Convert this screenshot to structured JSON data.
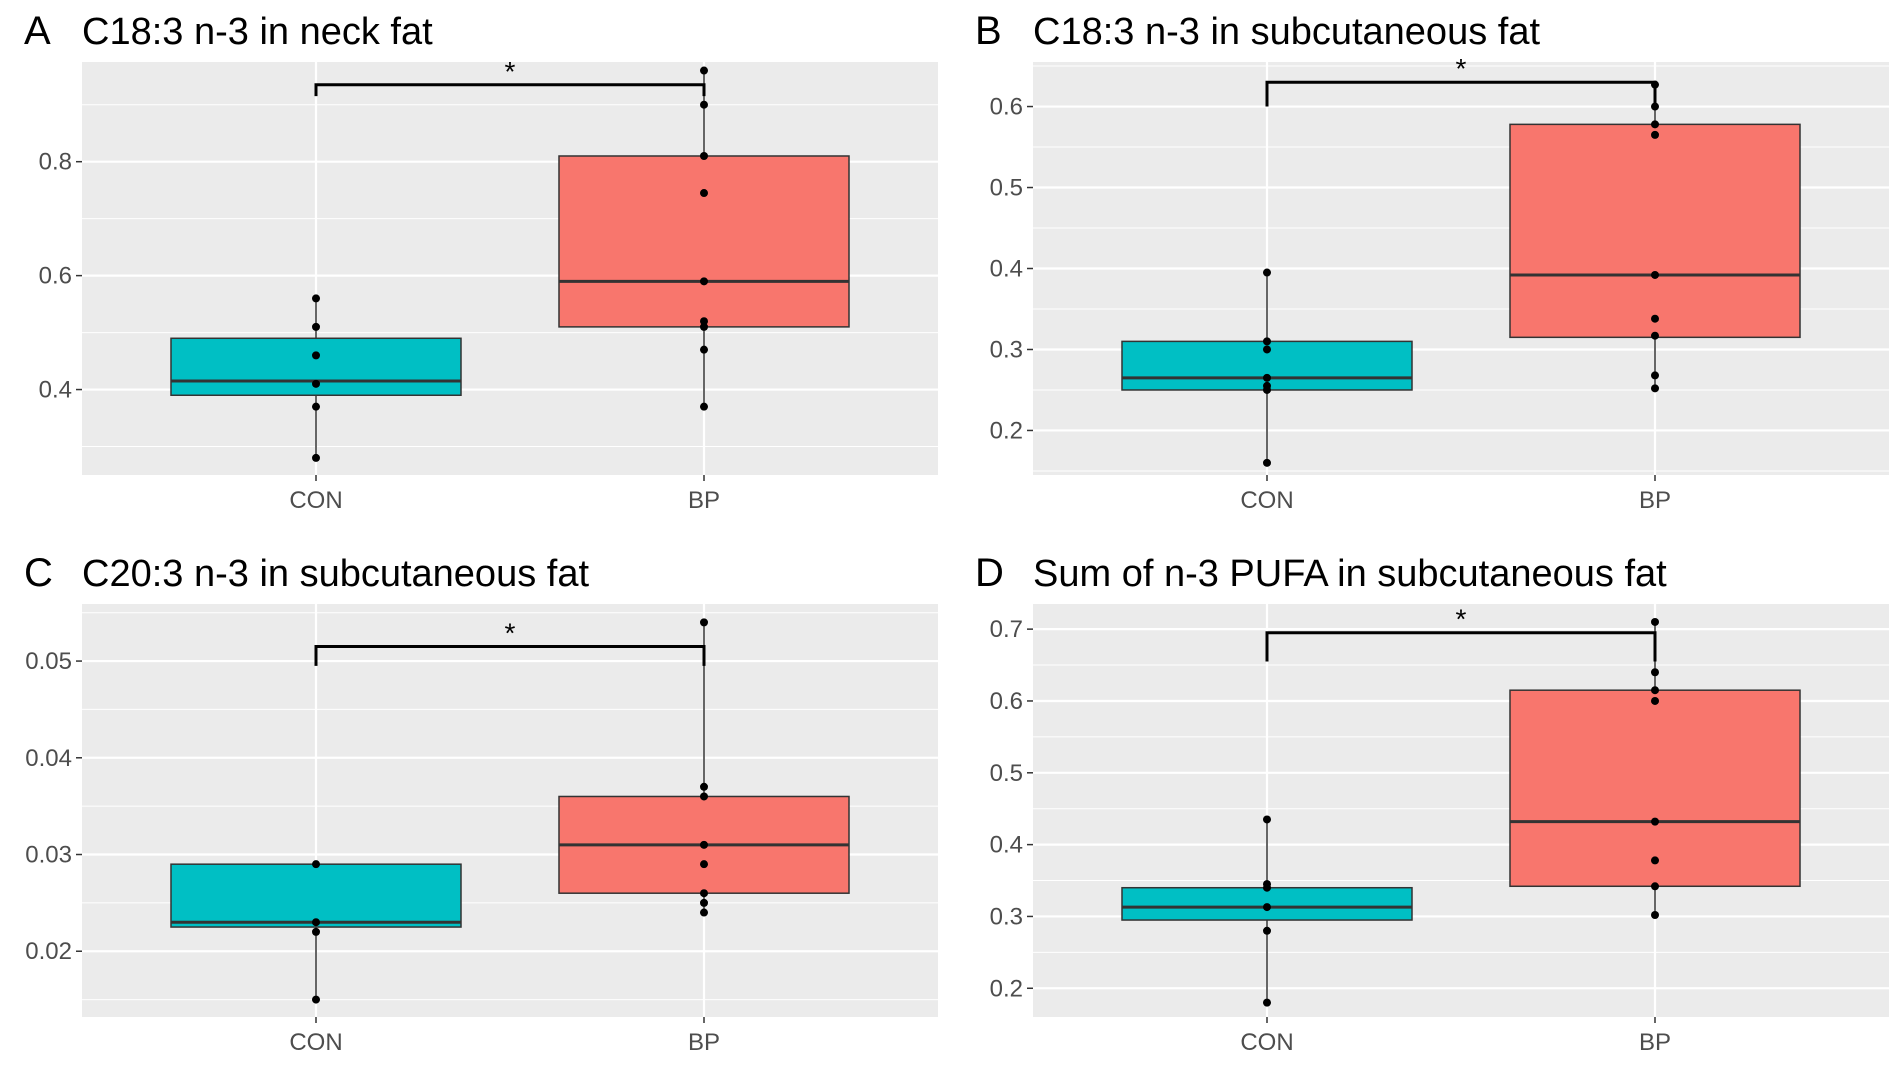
{
  "figure": {
    "groups": [
      "CON",
      "BP"
    ],
    "significance_label": "*"
  },
  "colors": {
    "CON": "#00BFC4",
    "BP": "#F8766D",
    "panel_bg": "#EBEBEB",
    "grid": "#FFFFFF"
  },
  "chart_data": [
    {
      "letter": "A",
      "title": "C18:3 n-3 in neck fat",
      "type": "box",
      "categories": [
        "CON",
        "BP"
      ],
      "ylim": [
        0.25,
        0.975
      ],
      "yticks": [
        0.4,
        0.6,
        0.8
      ],
      "ytick_labels": [
        "0.4",
        "0.6",
        "0.8"
      ],
      "boxes": [
        {
          "name": "CON",
          "whisker_low": 0.28,
          "q1": 0.39,
          "median": 0.415,
          "q3": 0.49,
          "whisker_high": 0.56,
          "points": [
            0.28,
            0.37,
            0.41,
            0.46,
            0.51,
            0.56
          ]
        },
        {
          "name": "BP",
          "whisker_low": 0.37,
          "q1": 0.51,
          "median": 0.59,
          "q3": 0.81,
          "whisker_high": 0.96,
          "points": [
            0.37,
            0.47,
            0.51,
            0.52,
            0.59,
            0.745,
            0.81,
            0.9,
            0.96
          ]
        }
      ],
      "significance": {
        "label": "*",
        "y": 0.935,
        "tip": 0.915
      }
    },
    {
      "letter": "B",
      "title": "C18:3 n-3 in subcutaneous fat",
      "type": "box",
      "categories": [
        "CON",
        "BP"
      ],
      "ylim": [
        0.145,
        0.655
      ],
      "yticks": [
        0.2,
        0.3,
        0.4,
        0.5,
        0.6
      ],
      "ytick_labels": [
        "0.2",
        "0.3",
        "0.4",
        "0.5",
        "0.6"
      ],
      "boxes": [
        {
          "name": "CON",
          "whisker_low": 0.16,
          "q1": 0.25,
          "median": 0.265,
          "q3": 0.31,
          "whisker_high": 0.395,
          "points": [
            0.16,
            0.25,
            0.255,
            0.265,
            0.3,
            0.31,
            0.395
          ]
        },
        {
          "name": "BP",
          "whisker_low": 0.252,
          "q1": 0.315,
          "median": 0.392,
          "q3": 0.578,
          "whisker_high": 0.627,
          "points": [
            0.252,
            0.268,
            0.317,
            0.338,
            0.392,
            0.565,
            0.578,
            0.6,
            0.627
          ]
        }
      ],
      "significance": {
        "label": "*",
        "y": 0.63,
        "tip": 0.6
      }
    },
    {
      "letter": "C",
      "title": "C20:3 n-3 in subcutaneous fat",
      "type": "box",
      "categories": [
        "CON",
        "BP"
      ],
      "ylim": [
        0.0132,
        0.0559
      ],
      "yticks": [
        0.02,
        0.03,
        0.04,
        0.05
      ],
      "ytick_labels": [
        "0.02",
        "0.03",
        "0.04",
        "0.05"
      ],
      "boxes": [
        {
          "name": "CON",
          "whisker_low": 0.015,
          "q1": 0.0225,
          "median": 0.023,
          "q3": 0.029,
          "whisker_high": 0.029,
          "points": [
            0.015,
            0.022,
            0.023,
            0.029
          ]
        },
        {
          "name": "BP",
          "whisker_low": 0.024,
          "q1": 0.026,
          "median": 0.031,
          "q3": 0.036,
          "whisker_high": 0.054,
          "points": [
            0.024,
            0.025,
            0.026,
            0.029,
            0.031,
            0.036,
            0.037,
            0.054
          ]
        }
      ],
      "significance": {
        "label": "*",
        "y": 0.0515,
        "tip": 0.0495
      }
    },
    {
      "letter": "D",
      "title": "Sum of n-3 PUFA in subcutaneous fat",
      "type": "box",
      "categories": [
        "CON",
        "BP"
      ],
      "ylim": [
        0.16,
        0.735
      ],
      "yticks": [
        0.2,
        0.3,
        0.4,
        0.5,
        0.6,
        0.7
      ],
      "ytick_labels": [
        "0.2",
        "0.3",
        "0.4",
        "0.5",
        "0.6",
        "0.7"
      ],
      "boxes": [
        {
          "name": "CON",
          "whisker_low": 0.18,
          "q1": 0.295,
          "median": 0.313,
          "q3": 0.34,
          "whisker_high": 0.435,
          "points": [
            0.18,
            0.28,
            0.313,
            0.34,
            0.345,
            0.435
          ]
        },
        {
          "name": "BP",
          "whisker_low": 0.302,
          "q1": 0.342,
          "median": 0.432,
          "q3": 0.615,
          "whisker_high": 0.71,
          "points": [
            0.302,
            0.342,
            0.378,
            0.432,
            0.6,
            0.615,
            0.64,
            0.71
          ]
        }
      ],
      "significance": {
        "label": "*",
        "y": 0.695,
        "tip": 0.655
      }
    }
  ]
}
